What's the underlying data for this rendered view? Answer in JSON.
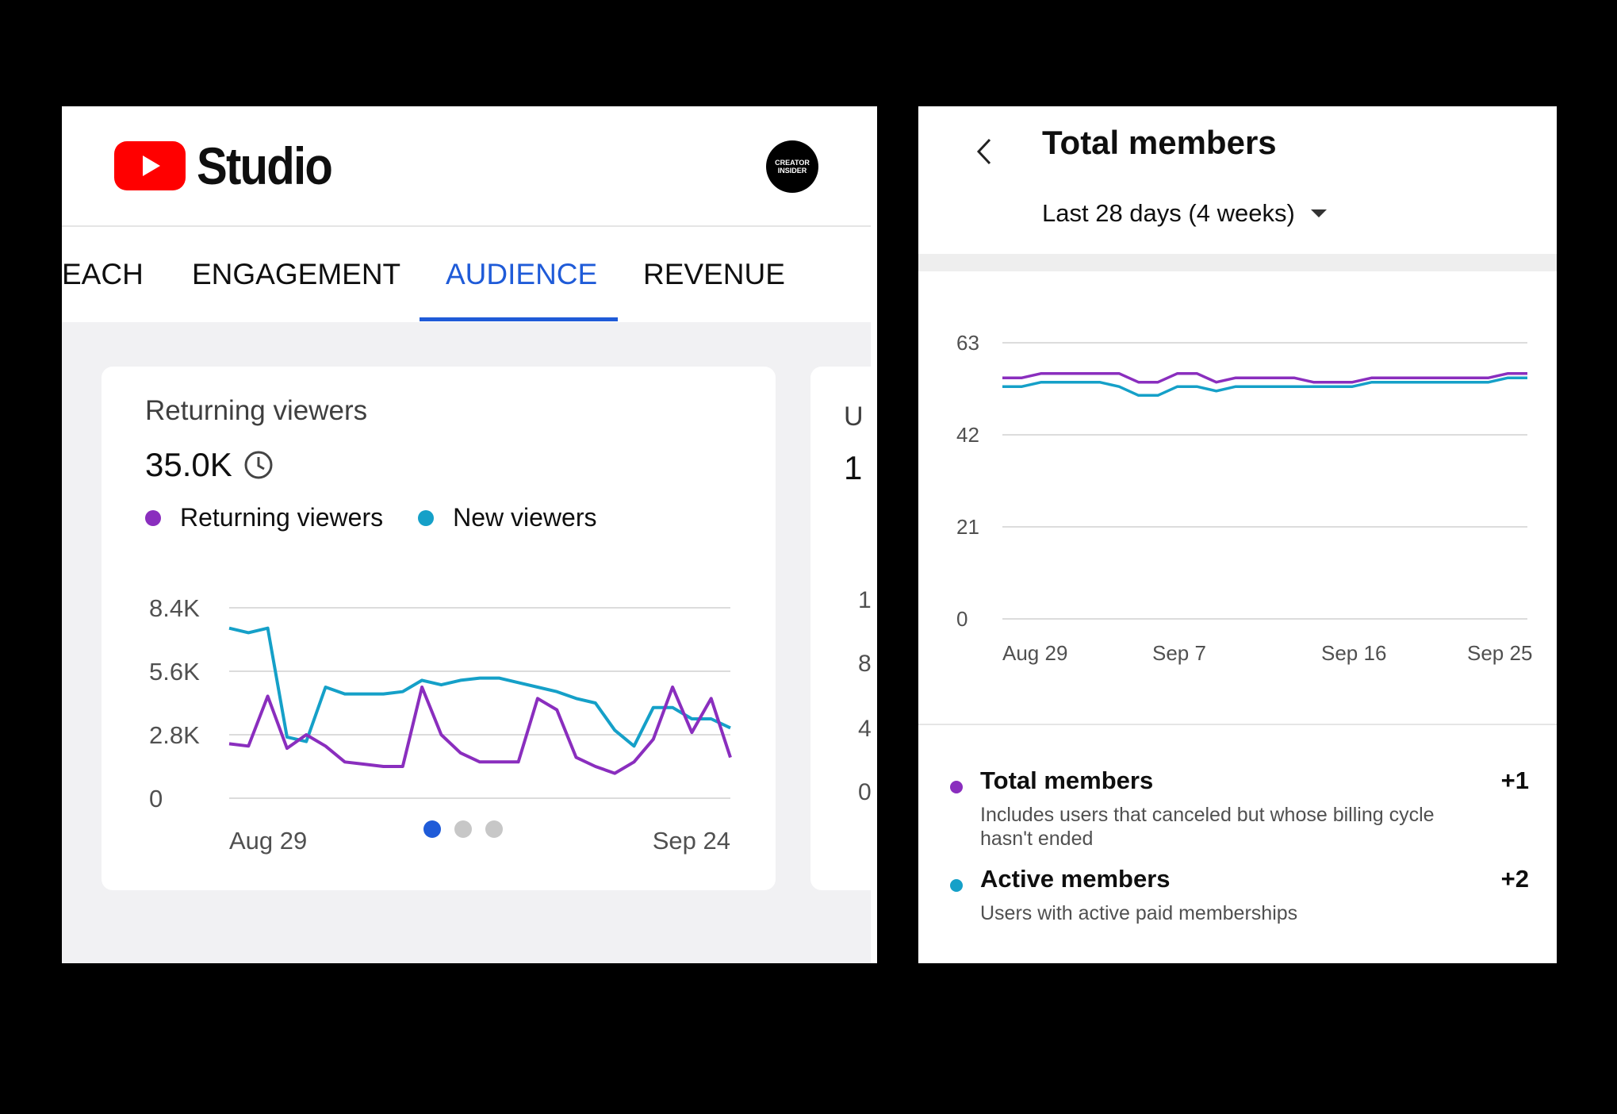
{
  "left": {
    "brand": "Studio",
    "avatar": {
      "line1": "CREATOR",
      "line2": "INSIDER"
    },
    "tabs": [
      {
        "label": "EACH",
        "active": false
      },
      {
        "label": "ENGAGEMENT",
        "active": false
      },
      {
        "label": "AUDIENCE",
        "active": true
      },
      {
        "label": "REVENUE",
        "active": false
      }
    ],
    "card": {
      "title": "Returning viewers",
      "value": "35.0K",
      "legend": [
        "Returning viewers",
        "New viewers"
      ]
    },
    "peek": {
      "title_initial": "U",
      "value_initial": "1",
      "ticks": [
        "1",
        "8",
        "4",
        "0"
      ]
    },
    "pager": {
      "count": 3,
      "active": 0
    }
  },
  "right": {
    "title": "Total members",
    "range": "Last 28 days (4 weeks)",
    "members": [
      {
        "name": "Total members",
        "delta": "+1",
        "desc": "Includes users that canceled but whose billing cycle hasn't ended"
      },
      {
        "name": "Active members",
        "delta": "+2",
        "desc": "Users with active paid memberships"
      }
    ]
  },
  "colors": {
    "accent": "#1f5bd8",
    "purple": "#8a2ebe",
    "teal": "#15a0c8",
    "brand_red": "#ff0000"
  },
  "chart_data": [
    {
      "type": "line",
      "y_ticks": [
        "0",
        "2.8K",
        "5.6K",
        "8.4K"
      ],
      "x_ticks": [
        "Aug 29",
        "Sep 24"
      ],
      "ylim": [
        0,
        8400
      ],
      "x": [
        0,
        1,
        2,
        3,
        4,
        5,
        6,
        7,
        8,
        9,
        10,
        11,
        12,
        13,
        14,
        15,
        16,
        17,
        18,
        19,
        20,
        21,
        22,
        23,
        24,
        25,
        26
      ],
      "series": [
        {
          "name": "Returning viewers",
          "color": "#8a2ebe",
          "values": [
            2400,
            2300,
            4500,
            2200,
            2800,
            2300,
            1600,
            1500,
            1400,
            1400,
            4900,
            2800,
            2000,
            1600,
            1600,
            1600,
            4400,
            3900,
            1800,
            1400,
            1100,
            1600,
            2600,
            4900,
            2900,
            4400,
            1800
          ]
        },
        {
          "name": "New viewers",
          "color": "#15a0c8",
          "values": [
            7500,
            7300,
            7500,
            2700,
            2500,
            4900,
            4600,
            4600,
            4600,
            4700,
            5200,
            5000,
            5200,
            5300,
            5300,
            5100,
            4900,
            4700,
            4400,
            4200,
            3000,
            2300,
            4000,
            4000,
            3500,
            3500,
            3100
          ]
        }
      ]
    },
    {
      "type": "line",
      "y_ticks": [
        "0",
        "21",
        "42",
        "63"
      ],
      "x_ticks": [
        "Aug 29",
        "Sep 7",
        "Sep 16",
        "Sep 25"
      ],
      "ylim": [
        0,
        63
      ],
      "x": [
        0,
        1,
        2,
        3,
        4,
        5,
        6,
        7,
        8,
        9,
        10,
        11,
        12,
        13,
        14,
        15,
        16,
        17,
        18,
        19,
        20,
        21,
        22,
        23,
        24,
        25,
        26,
        27
      ],
      "series": [
        {
          "name": "Total members",
          "color": "#8a2ebe",
          "values": [
            55,
            55,
            56,
            56,
            56,
            56,
            56,
            54,
            54,
            56,
            56,
            54,
            55,
            55,
            55,
            55,
            54,
            54,
            54,
            55,
            55,
            55,
            55,
            55,
            55,
            55,
            56,
            56
          ]
        },
        {
          "name": "Active members",
          "color": "#15a0c8",
          "values": [
            53,
            53,
            54,
            54,
            54,
            54,
            53,
            51,
            51,
            53,
            53,
            52,
            53,
            53,
            53,
            53,
            53,
            53,
            53,
            54,
            54,
            54,
            54,
            54,
            54,
            54,
            55,
            55
          ]
        }
      ]
    }
  ]
}
